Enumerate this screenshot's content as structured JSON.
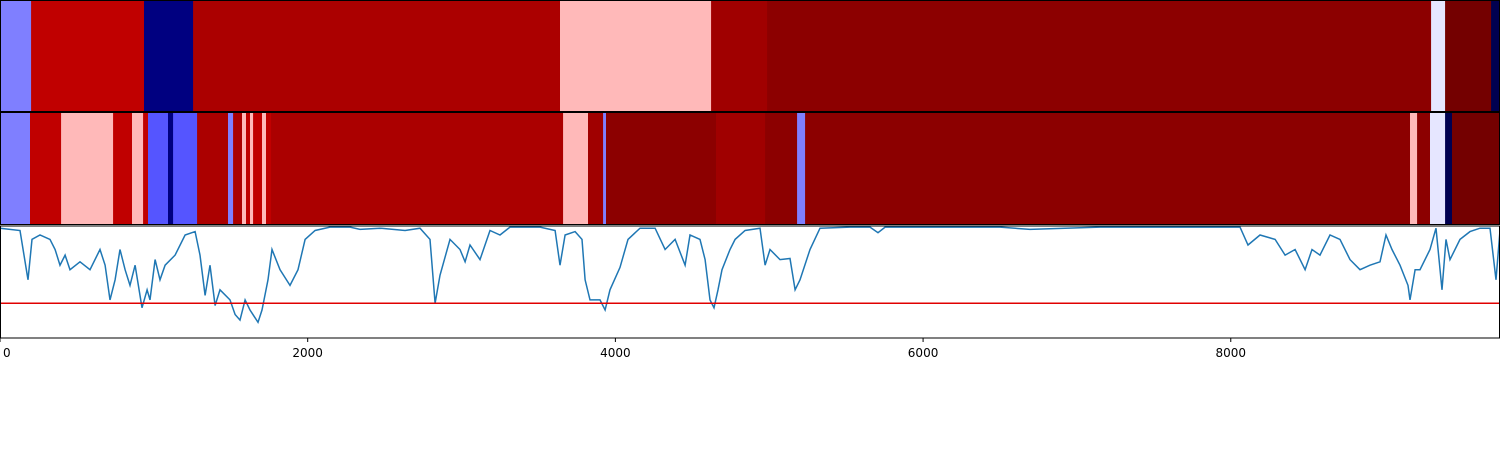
{
  "chart_data": [
    {
      "type": "segments",
      "xlim": [
        0,
        9750
      ],
      "boundaries": [
        0,
        202,
        936,
        1255,
        3640,
        4622,
        4986,
        9302,
        9393,
        9692,
        9750
      ],
      "colors": [
        "#7f7fff",
        "#c00000",
        "#000080",
        "#ab0000",
        "#ffb9b9",
        "#a00000",
        "#8c0000",
        "#e6e6ff",
        "#740000",
        "#000050"
      ]
    },
    {
      "type": "segments",
      "xlim": [
        0,
        9750
      ],
      "boundaries": [
        0,
        195,
        397,
        735,
        858,
        930,
        962,
        1092,
        1125,
        1281,
        1482,
        1515,
        1573,
        1599,
        1625,
        1645,
        1703,
        1729,
        1762,
        3660,
        3822,
        3920,
        3939,
        4654,
        4973,
        5181,
        5233,
        9165,
        9211,
        9295,
        9393,
        9438,
        9750
      ],
      "colors": [
        "#7f7fff",
        "#c00000",
        "#ffb9b9",
        "#c00000",
        "#ffb9b9",
        "#c00000",
        "#5555ff",
        "#000080",
        "#5555ff",
        "#ab0000",
        "#7f7fff",
        "#ab0000",
        "#ffb9b9",
        "#c00000",
        "#ffb9b9",
        "#c00000",
        "#ffb9b9",
        "#c00000",
        "#ab0000",
        "#ffb9b9",
        "#a00000",
        "#7f7fff",
        "#8c0000",
        "#a00000",
        "#8c0000",
        "#7f7fff",
        "#8c0000",
        "#ffb9b9",
        "#8c0000",
        "#e6e6ff",
        "#000050",
        "#740000"
      ]
    },
    {
      "type": "line",
      "xlim": [
        0,
        9750
      ],
      "ylim": [
        0,
        1
      ],
      "xticks": [
        0,
        2000,
        4000,
        6000,
        8000
      ],
      "color": "#1f77b4",
      "threshold": 0.31,
      "threshold_color": "#e00000",
      "x": [
        0,
        130,
        182,
        208,
        260,
        325,
        358,
        390,
        423,
        455,
        520,
        585,
        650,
        683,
        715,
        748,
        780,
        813,
        845,
        878,
        923,
        956,
        975,
        1008,
        1040,
        1073,
        1138,
        1203,
        1268,
        1300,
        1333,
        1365,
        1398,
        1430,
        1495,
        1528,
        1560,
        1593,
        1625,
        1677,
        1703,
        1742,
        1768,
        1820,
        1885,
        1937,
        1983,
        2048,
        2145,
        2275,
        2340,
        2470,
        2633,
        2730,
        2795,
        2828,
        2860,
        2925,
        2990,
        3023,
        3055,
        3120,
        3185,
        3250,
        3315,
        3510,
        3608,
        3640,
        3673,
        3738,
        3783,
        3803,
        3835,
        3900,
        3933,
        3965,
        4030,
        4082,
        4160,
        4258,
        4323,
        4388,
        4453,
        4485,
        4550,
        4583,
        4615,
        4641,
        4667,
        4693,
        4745,
        4778,
        4843,
        4940,
        4973,
        5005,
        5070,
        5135,
        5168,
        5200,
        5265,
        5330,
        5525,
        5655,
        5707,
        5753,
        6500,
        6695,
        7150,
        8060,
        8112,
        8190,
        8288,
        8353,
        8418,
        8483,
        8528,
        8580,
        8645,
        8710,
        8775,
        8840,
        8905,
        8970,
        9009,
        9048,
        9100,
        9152,
        9165,
        9198,
        9230,
        9295,
        9334,
        9373,
        9399,
        9425,
        9490,
        9555,
        9620,
        9685,
        9724,
        9750
      ],
      "values": [
        0.98,
        0.96,
        0.52,
        0.88,
        0.92,
        0.88,
        0.79,
        0.65,
        0.74,
        0.61,
        0.68,
        0.61,
        0.79,
        0.65,
        0.34,
        0.52,
        0.79,
        0.61,
        0.47,
        0.65,
        0.27,
        0.43,
        0.34,
        0.7,
        0.52,
        0.65,
        0.74,
        0.92,
        0.95,
        0.74,
        0.38,
        0.65,
        0.29,
        0.43,
        0.34,
        0.21,
        0.16,
        0.34,
        0.25,
        0.14,
        0.25,
        0.52,
        0.79,
        0.61,
        0.47,
        0.61,
        0.88,
        0.96,
        0.99,
        0.99,
        0.97,
        0.98,
        0.96,
        0.98,
        0.88,
        0.31,
        0.56,
        0.88,
        0.79,
        0.68,
        0.83,
        0.7,
        0.96,
        0.92,
        0.99,
        0.99,
        0.96,
        0.65,
        0.92,
        0.95,
        0.88,
        0.52,
        0.34,
        0.34,
        0.25,
        0.43,
        0.63,
        0.88,
        0.98,
        0.98,
        0.79,
        0.88,
        0.65,
        0.92,
        0.88,
        0.7,
        0.34,
        0.27,
        0.43,
        0.61,
        0.79,
        0.88,
        0.96,
        0.98,
        0.65,
        0.79,
        0.7,
        0.71,
        0.43,
        0.52,
        0.79,
        0.98,
        0.99,
        0.99,
        0.94,
        0.99,
        0.99,
        0.97,
        0.99,
        0.99,
        0.83,
        0.92,
        0.88,
        0.74,
        0.79,
        0.61,
        0.79,
        0.74,
        0.92,
        0.88,
        0.7,
        0.61,
        0.65,
        0.68,
        0.92,
        0.79,
        0.65,
        0.47,
        0.34,
        0.61,
        0.61,
        0.79,
        0.98,
        0.43,
        0.88,
        0.7,
        0.88,
        0.95,
        0.98,
        0.98,
        0.52,
        0.96
      ]
    }
  ]
}
